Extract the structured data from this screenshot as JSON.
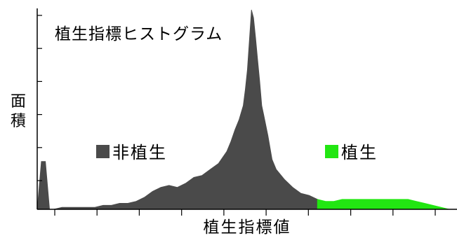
{
  "chart_data": {
    "type": "area",
    "title": "植生指標ヒストグラム",
    "xlabel": "植生指標値",
    "ylabel": "面積",
    "grid": false,
    "legend_placement": "inside, centered below title",
    "series": [
      {
        "name": "非植生",
        "color": "#4a4a4a",
        "x": [
          0.0,
          0.01,
          0.02,
          0.03,
          0.04,
          0.06,
          0.08,
          0.1,
          0.12,
          0.14,
          0.16,
          0.18,
          0.2,
          0.22,
          0.24,
          0.26,
          0.28,
          0.3,
          0.32,
          0.34,
          0.36,
          0.38,
          0.4,
          0.42,
          0.44,
          0.46,
          0.47,
          0.48,
          0.49,
          0.5,
          0.505,
          0.51,
          0.515,
          0.52,
          0.525,
          0.53,
          0.535,
          0.54,
          0.545,
          0.55,
          0.56,
          0.57,
          0.58,
          0.6,
          0.62,
          0.64,
          0.66,
          0.68
        ],
        "values": [
          0.0,
          0.24,
          0.24,
          0.0,
          0.0,
          0.01,
          0.01,
          0.01,
          0.01,
          0.01,
          0.02,
          0.02,
          0.03,
          0.03,
          0.04,
          0.06,
          0.09,
          0.11,
          0.12,
          0.11,
          0.13,
          0.16,
          0.17,
          0.2,
          0.23,
          0.29,
          0.34,
          0.4,
          0.45,
          0.52,
          0.6,
          0.7,
          0.85,
          1.0,
          0.96,
          0.86,
          0.75,
          0.64,
          0.52,
          0.47,
          0.37,
          0.25,
          0.2,
          0.15,
          0.11,
          0.08,
          0.07,
          0.05
        ]
      },
      {
        "name": "植生",
        "color": "#22e612",
        "x": [
          0.68,
          0.7,
          0.72,
          0.74,
          0.76,
          0.78,
          0.8,
          0.82,
          0.84,
          0.86,
          0.88,
          0.9,
          0.92,
          0.94,
          0.96,
          0.98,
          1.0
        ],
        "values": [
          0.05,
          0.04,
          0.04,
          0.05,
          0.05,
          0.05,
          0.05,
          0.05,
          0.05,
          0.05,
          0.05,
          0.05,
          0.04,
          0.03,
          0.02,
          0.01,
          0.0
        ]
      }
    ],
    "x_ticks_count": 10,
    "y_ticks_count": 6
  },
  "legend": {
    "non_vegetation_label": "非植生",
    "vegetation_label": "植生"
  }
}
